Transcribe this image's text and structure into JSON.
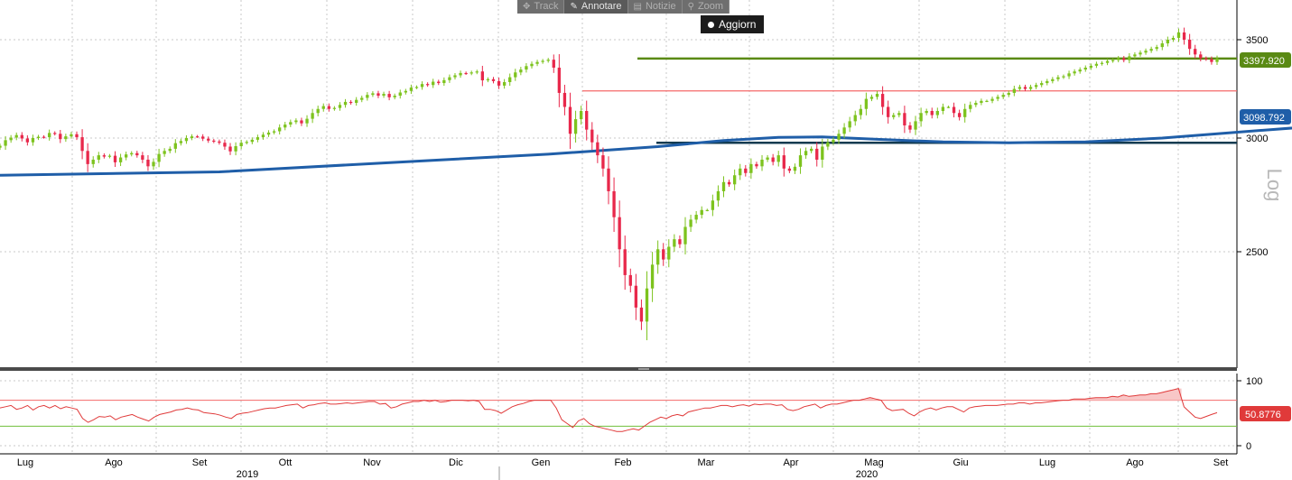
{
  "toolbar": {
    "track": "Track",
    "annotate": "Annotare",
    "news": "Notizie",
    "zoom": "Zoom",
    "refresh": "Aggiorn"
  },
  "colors": {
    "up": "#7dc31e",
    "down": "#e8284b",
    "ma": "#1f5ea8",
    "support": "#133b50",
    "resistance": "#5a8a14",
    "red_line": "#f46a6a",
    "rsi": "#e03a3a",
    "rsi_fill": "#f8c7c7",
    "rsi_upper": "#f46a6a",
    "rsi_lower": "#6fbf3c"
  },
  "chart_data": {
    "type": "candlestick",
    "yscale": "log",
    "ylabel": "Log",
    "ylim": [
      2150,
      3650
    ],
    "yticks": [
      "3500",
      "3000",
      "2500"
    ],
    "xlabels": [
      "Lug",
      "Ago",
      "Set",
      "Ott",
      "Nov",
      "Dic",
      "Gen",
      "Feb",
      "Mar",
      "Apr",
      "Mag",
      "Giu",
      "Lug",
      "Ago",
      "Set"
    ],
    "years": [
      "2019",
      "2020"
    ],
    "last_price": "3397.920",
    "ma_value": "3098.792",
    "hlines": [
      {
        "name": "resistance",
        "value": 3397.92
      },
      {
        "name": "red-level",
        "value": 3230
      },
      {
        "name": "support",
        "value": 2978
      }
    ],
    "close": [
      2964,
      2990,
      3002,
      3014,
      2998,
      2980,
      3000,
      3006,
      3004,
      3024,
      3020,
      2995,
      3008,
      3018,
      3004,
      2940,
      2880,
      2900,
      2920,
      2914,
      2918,
      2888,
      2910,
      2924,
      2930,
      2920,
      2900,
      2870,
      2890,
      2926,
      2940,
      2950,
      2976,
      2986,
      3000,
      3008,
      3007,
      2997,
      2988,
      2984,
      2978,
      2960,
      2938,
      2962,
      2978,
      2982,
      2992,
      3004,
      3016,
      3026,
      3032,
      3050,
      3064,
      3076,
      3084,
      3070,
      3092,
      3120,
      3140,
      3154,
      3140,
      3145,
      3160,
      3175,
      3170,
      3185,
      3195,
      3210,
      3218,
      3206,
      3215,
      3198,
      3206,
      3222,
      3230,
      3247,
      3250,
      3265,
      3260,
      3277,
      3270,
      3285,
      3300,
      3310,
      3322,
      3320,
      3325,
      3330,
      3284,
      3290,
      3280,
      3257,
      3275,
      3300,
      3325,
      3340,
      3358,
      3370,
      3380,
      3386,
      3392,
      3350,
      3220,
      3150,
      3020,
      3090,
      3130,
      3040,
      2980,
      2920,
      2860,
      2760,
      2650,
      2520,
      2420,
      2380,
      2300,
      2250,
      2370,
      2460,
      2520,
      2480,
      2530,
      2560,
      2540,
      2610,
      2640,
      2660,
      2680,
      2680,
      2720,
      2760,
      2800,
      2790,
      2830,
      2860,
      2840,
      2880,
      2870,
      2900,
      2910,
      2890,
      2920,
      2860,
      2850,
      2868,
      2920,
      2940,
      2950,
      2900,
      2960,
      2980,
      2992,
      3020,
      3050,
      3080,
      3110,
      3140,
      3190,
      3200,
      3215,
      3150,
      3100,
      3110,
      3120,
      3060,
      3040,
      3080,
      3120,
      3130,
      3110,
      3130,
      3150,
      3150,
      3120,
      3100,
      3140,
      3160,
      3170,
      3180,
      3180,
      3190,
      3200,
      3210,
      3220,
      3240,
      3250,
      3240,
      3250,
      3260,
      3270,
      3280,
      3290,
      3300,
      3305,
      3320,
      3330,
      3340,
      3350,
      3360,
      3370,
      3375,
      3385,
      3390,
      3400,
      3390,
      3410,
      3420,
      3430,
      3440,
      3450,
      3460,
      3480,
      3500,
      3510,
      3540,
      3500,
      3450,
      3420,
      3400,
      3395,
      3380,
      3397.92
    ],
    "ma": [
      [
        0,
        2830
      ],
      [
        40,
        2845
      ],
      [
        70,
        2885
      ],
      [
        100,
        2925
      ],
      [
        120,
        2960
      ],
      [
        132,
        2988
      ],
      [
        142,
        3003
      ],
      [
        150,
        3005
      ],
      [
        160,
        2994
      ],
      [
        172,
        2982
      ],
      [
        184,
        2978
      ],
      [
        198,
        2982
      ],
      [
        212,
        3000
      ],
      [
        232,
        3040
      ],
      [
        255,
        3085
      ],
      [
        290,
        3150
      ],
      [
        337,
        3215
      ]
    ],
    "rsi_lines": [
      70,
      30
    ],
    "rsi_ticks": [
      "100",
      "0"
    ],
    "rsi_value": "50.8776",
    "rsi": [
      58,
      60,
      62,
      56,
      58,
      62,
      55,
      60,
      62,
      58,
      62,
      57,
      60,
      58,
      56,
      42,
      36,
      40,
      45,
      44,
      46,
      40,
      44,
      46,
      48,
      44,
      41,
      38,
      44,
      48,
      50,
      52,
      55,
      56,
      58,
      56,
      55,
      51,
      50,
      49,
      47,
      44,
      42,
      48,
      50,
      51,
      53,
      55,
      57,
      58,
      58,
      60,
      62,
      63,
      64,
      58,
      62,
      63,
      65,
      66,
      64,
      64,
      65,
      66,
      65,
      66,
      67,
      68,
      68,
      64,
      65,
      58,
      60,
      64,
      66,
      68,
      68,
      70,
      68,
      70,
      67,
      68,
      70,
      70,
      70,
      69,
      70,
      68,
      56,
      56,
      54,
      50,
      55,
      60,
      63,
      65,
      68,
      70,
      70,
      70,
      70,
      58,
      40,
      34,
      28,
      38,
      42,
      34,
      30,
      28,
      26,
      24,
      22,
      22,
      24,
      26,
      24,
      30,
      36,
      40,
      44,
      42,
      46,
      48,
      46,
      52,
      54,
      56,
      58,
      58,
      60,
      62,
      62,
      60,
      62,
      63,
      61,
      64,
      63,
      64,
      64,
      62,
      63,
      56,
      54,
      56,
      60,
      62,
      64,
      58,
      62,
      64,
      64,
      66,
      68,
      70,
      70,
      72,
      74,
      72,
      70,
      58,
      54,
      55,
      56,
      50,
      46,
      52,
      56,
      58,
      55,
      58,
      60,
      60,
      56,
      52,
      58,
      60,
      61,
      62,
      62,
      62,
      63,
      64,
      64,
      66,
      66,
      64,
      66,
      66,
      67,
      68,
      69,
      70,
      70,
      72,
      72,
      72,
      73,
      74,
      74,
      74,
      76,
      75,
      78,
      76,
      77,
      78,
      78,
      80,
      80,
      82,
      84,
      86,
      88,
      60,
      52,
      44,
      42,
      45,
      48,
      50.88
    ]
  }
}
